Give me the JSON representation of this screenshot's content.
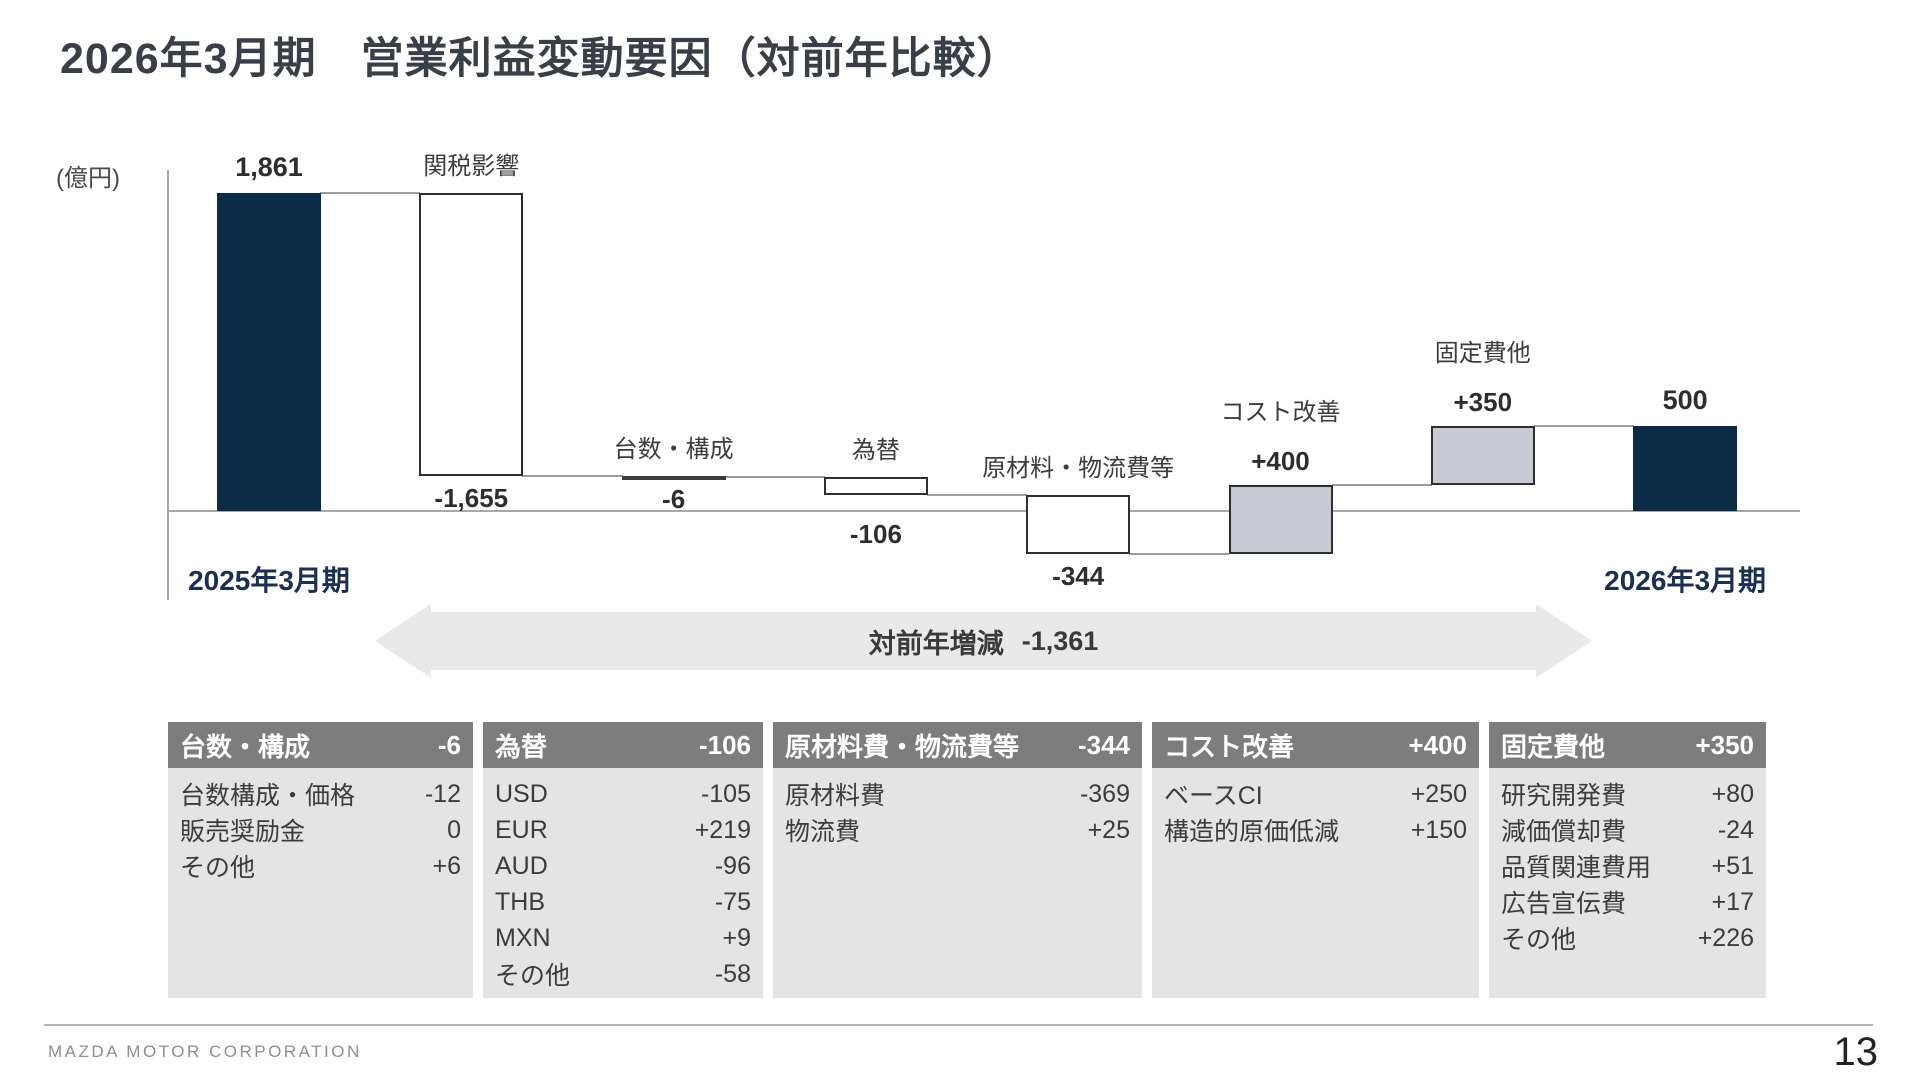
{
  "slide": {
    "title": "2026年3月期　営業利益変動要因（対前年比較）",
    "footer": {
      "company": "MAZDA MOTOR CORPORATION",
      "page_number": "13"
    }
  },
  "chart_data": {
    "type": "bar",
    "subtype": "waterfall",
    "unit_label": "(億円)",
    "unit": "億円",
    "start": {
      "label": "2025年3月期",
      "value": 1861,
      "value_label": "1,861"
    },
    "deltas": [
      {
        "label": "関税影響",
        "value": -1655,
        "value_label": "-1,655"
      },
      {
        "label": "台数・構成",
        "value": -6,
        "value_label": "-6"
      },
      {
        "label": "為替",
        "value": -106,
        "value_label": "-106"
      },
      {
        "label": "原材料・物流費等",
        "value": -344,
        "value_label": "-344"
      },
      {
        "label": "コスト改善",
        "value": 400,
        "value_label": "+400"
      },
      {
        "label": "固定費他",
        "value": 350,
        "value_label": "+350"
      }
    ],
    "end": {
      "label": "2026年3月期",
      "value": 500,
      "value_label": "500"
    },
    "yoy_arrow": {
      "label": "対前年増減",
      "value": -1361,
      "value_label": "-1,361"
    },
    "ylim_implied": [
      -400,
      2000
    ],
    "grid": "off",
    "colors": {
      "total_bar": "#0d2a46",
      "decrease_bar_fill": "#ffffff",
      "increase_bar_fill": "#c7cad2",
      "bar_border": "#2f2f2f",
      "tiny_bar": "#3c3c3c",
      "axis_line": "#a7a7a7",
      "connector": "#9c9c9c",
      "period_label": "#1a2f52",
      "arrow_fill": "#e9e9e9",
      "table_header_bg": "#7d7d7d",
      "table_body_bg": "#e4e4e4"
    }
  },
  "tables": [
    {
      "header": "台数・構成",
      "header_value": "-6",
      "rows": [
        [
          "台数構成・価格",
          "-12"
        ],
        [
          "販売奨励金",
          "0"
        ],
        [
          "その他",
          "+6"
        ]
      ]
    },
    {
      "header": "為替",
      "header_value": "-106",
      "rows": [
        [
          "USD",
          "-105"
        ],
        [
          "EUR",
          "+219"
        ],
        [
          "AUD",
          "-96"
        ],
        [
          "THB",
          "-75"
        ],
        [
          "MXN",
          "+9"
        ],
        [
          "その他",
          "-58"
        ]
      ]
    },
    {
      "header": "原材料費・物流費等",
      "header_value": "-344",
      "rows": [
        [
          "原材料費",
          "-369"
        ],
        [
          "物流費",
          "+25"
        ]
      ]
    },
    {
      "header": "コスト改善",
      "header_value": "+400",
      "rows": [
        [
          "ベースCI",
          "+250"
        ],
        [
          "構造的原価低減",
          "+150"
        ]
      ]
    },
    {
      "header": "固定費他",
      "header_value": "+350",
      "rows": [
        [
          "研究開発費",
          "+80"
        ],
        [
          "減価償却費",
          "-24"
        ],
        [
          "品質関連費用",
          "+51"
        ],
        [
          "広告宣伝費",
          "+17"
        ],
        [
          "その他",
          "+226"
        ]
      ]
    }
  ]
}
